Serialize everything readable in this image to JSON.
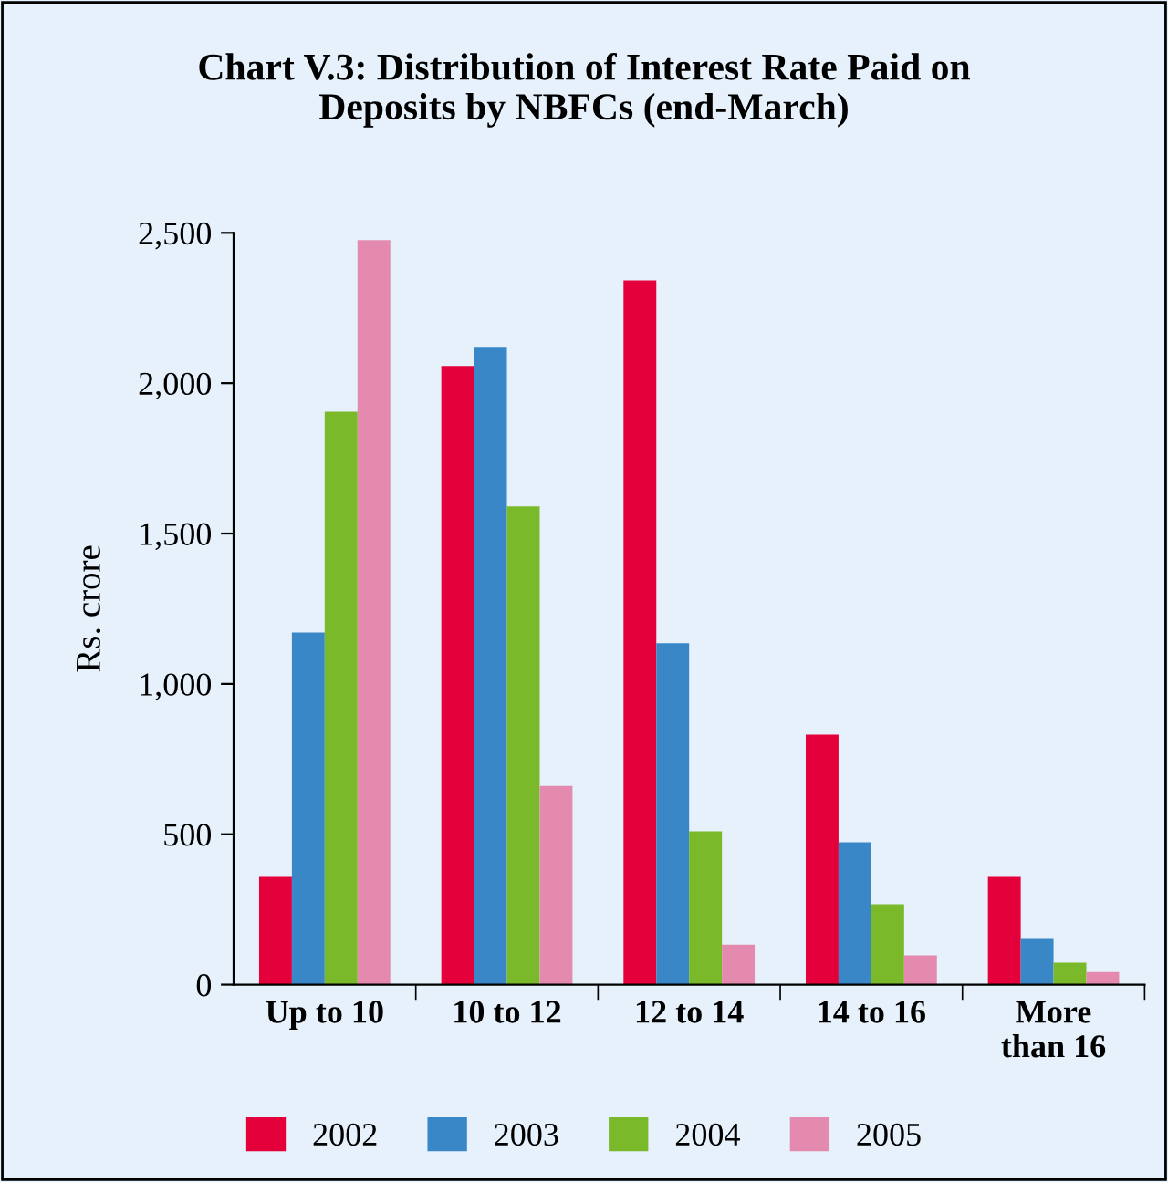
{
  "chart_data": {
    "type": "bar",
    "title": "Chart V.3: Distribution of Interest Rate Paid on\nDeposits by NBFCs (end-March)",
    "ylabel": "Rs. crore",
    "categories": [
      "Up to 10",
      "10 to 12",
      "12 to 14",
      "14 to 16",
      "More\nthan 16"
    ],
    "series": [
      {
        "name": "2002",
        "color": "#e4003a",
        "values": [
          358,
          2057,
          2342,
          831,
          358
        ]
      },
      {
        "name": "2003",
        "color": "#3a87c8",
        "values": [
          1171,
          2118,
          1135,
          473,
          152
        ]
      },
      {
        "name": "2004",
        "color": "#7ab929",
        "values": [
          1905,
          1590,
          510,
          267,
          73
        ]
      },
      {
        "name": "2005",
        "color": "#e48aae",
        "values": [
          2476,
          661,
          133,
          97,
          42
        ]
      }
    ],
    "ylim": [
      0,
      2500
    ],
    "yticks": [
      0,
      {
        "value": 500,
        "label": "500"
      },
      {
        "value": 1000,
        "label": "1,000"
      },
      {
        "value": 1500,
        "label": "1,500"
      },
      {
        "value": 2000,
        "label": "2,000"
      },
      {
        "value": 2500,
        "label": "2,500"
      }
    ],
    "grid": false,
    "legend": "bottom"
  }
}
